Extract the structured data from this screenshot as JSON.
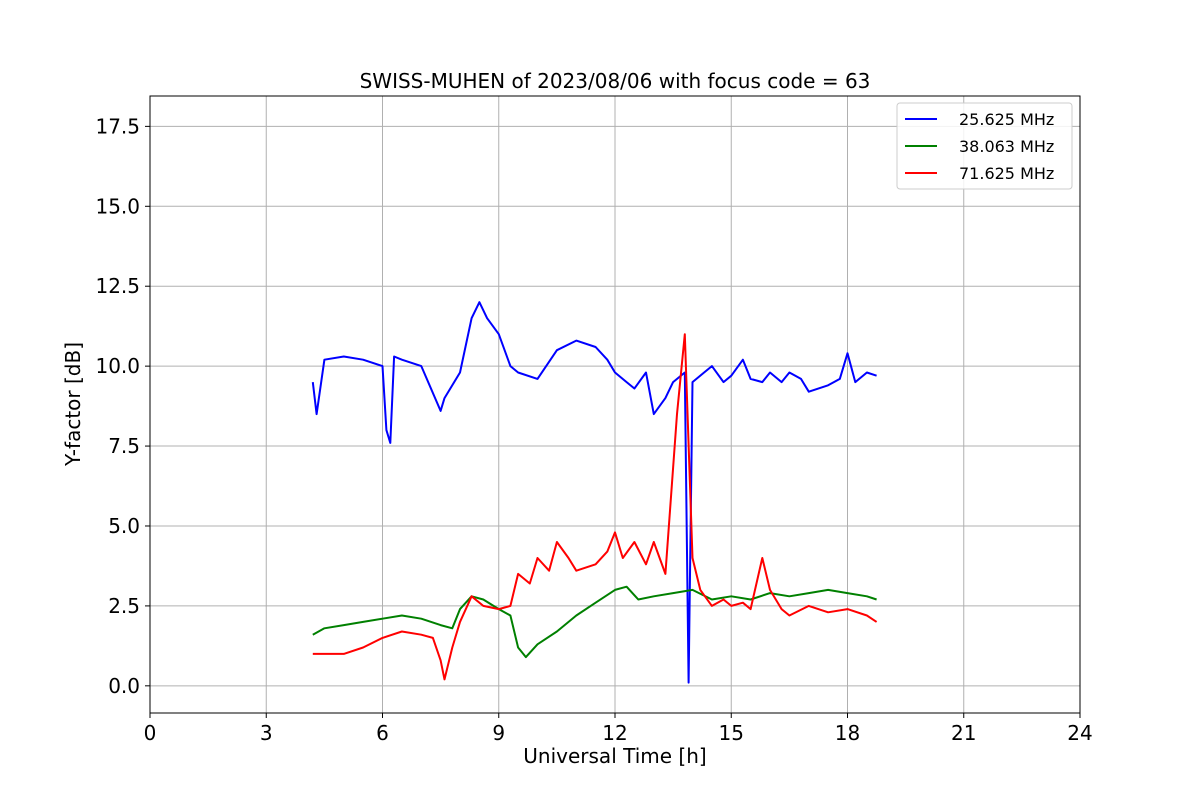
{
  "chart_data": {
    "type": "line",
    "title": "SWISS-MUHEN of 2023/08/06 with focus code = 63",
    "xlabel": "Universal Time [h]",
    "ylabel": "Y-factor [dB]",
    "xlim": [
      0,
      24
    ],
    "ylim": [
      -0.85,
      18.45
    ],
    "xticks": [
      0,
      3,
      6,
      9,
      12,
      15,
      18,
      21,
      24
    ],
    "xtick_labels": [
      "0",
      "3",
      "6",
      "9",
      "12",
      "15",
      "18",
      "21",
      "24"
    ],
    "yticks": [
      0.0,
      2.5,
      5.0,
      7.5,
      10.0,
      12.5,
      15.0,
      17.5
    ],
    "ytick_labels": [
      "0.0",
      "2.5",
      "5.0",
      "7.5",
      "10.0",
      "12.5",
      "15.0",
      "17.5"
    ],
    "grid": true,
    "legend_position": "top-right",
    "series": [
      {
        "name": "25.625 MHz",
        "color": "#0000ff",
        "x": [
          4.2,
          4.3,
          4.5,
          5.0,
          5.5,
          6.0,
          6.1,
          6.2,
          6.3,
          6.5,
          7.0,
          7.5,
          7.6,
          8.0,
          8.3,
          8.5,
          8.7,
          9.0,
          9.3,
          9.5,
          10.0,
          10.5,
          11.0,
          11.5,
          11.8,
          12.0,
          12.3,
          12.5,
          12.8,
          13.0,
          13.3,
          13.5,
          13.8,
          13.9,
          14.0,
          14.3,
          14.5,
          14.8,
          15.0,
          15.3,
          15.5,
          15.8,
          16.0,
          16.3,
          16.5,
          16.8,
          17.0,
          17.5,
          17.8,
          18.0,
          18.2,
          18.5,
          18.75
        ],
        "y": [
          9.5,
          8.5,
          10.2,
          10.3,
          10.2,
          10.0,
          8.0,
          7.6,
          10.3,
          10.2,
          10.0,
          8.6,
          9.0,
          9.8,
          11.5,
          12.0,
          11.5,
          11.0,
          10.0,
          9.8,
          9.6,
          10.5,
          10.8,
          10.6,
          10.2,
          9.8,
          9.5,
          9.3,
          9.8,
          8.5,
          9.0,
          9.5,
          9.8,
          0.1,
          9.5,
          9.8,
          10.0,
          9.5,
          9.7,
          10.2,
          9.6,
          9.5,
          9.8,
          9.5,
          9.8,
          9.6,
          9.2,
          9.4,
          9.6,
          10.4,
          9.5,
          9.8,
          9.7
        ]
      },
      {
        "name": "38.063 MHz",
        "color": "#008000",
        "x": [
          4.2,
          4.5,
          5.0,
          5.5,
          6.0,
          6.5,
          7.0,
          7.5,
          7.8,
          8.0,
          8.3,
          8.6,
          9.0,
          9.3,
          9.5,
          9.7,
          10.0,
          10.5,
          11.0,
          11.5,
          12.0,
          12.3,
          12.6,
          13.0,
          13.5,
          14.0,
          14.5,
          15.0,
          15.5,
          16.0,
          16.5,
          17.0,
          17.5,
          18.0,
          18.5,
          18.75
        ],
        "y": [
          1.6,
          1.8,
          1.9,
          2.0,
          2.1,
          2.2,
          2.1,
          1.9,
          1.8,
          2.4,
          2.8,
          2.7,
          2.4,
          2.2,
          1.2,
          0.9,
          1.3,
          1.7,
          2.2,
          2.6,
          3.0,
          3.1,
          2.7,
          2.8,
          2.9,
          3.0,
          2.7,
          2.8,
          2.7,
          2.9,
          2.8,
          2.9,
          3.0,
          2.9,
          2.8,
          2.7
        ]
      },
      {
        "name": "71.625 MHz",
        "color": "#ff0000",
        "x": [
          4.2,
          4.5,
          5.0,
          5.5,
          6.0,
          6.5,
          7.0,
          7.3,
          7.5,
          7.6,
          7.8,
          8.0,
          8.3,
          8.6,
          9.0,
          9.3,
          9.5,
          9.8,
          10.0,
          10.3,
          10.5,
          10.8,
          11.0,
          11.5,
          11.8,
          12.0,
          12.2,
          12.5,
          12.8,
          13.0,
          13.3,
          13.6,
          13.8,
          14.0,
          14.2,
          14.5,
          14.8,
          15.0,
          15.3,
          15.5,
          15.8,
          16.0,
          16.3,
          16.5,
          17.0,
          17.5,
          18.0,
          18.5,
          18.75
        ],
        "y": [
          1.0,
          1.0,
          1.0,
          1.2,
          1.5,
          1.7,
          1.6,
          1.5,
          0.8,
          0.2,
          1.2,
          2.0,
          2.8,
          2.5,
          2.4,
          2.5,
          3.5,
          3.2,
          4.0,
          3.6,
          4.5,
          4.0,
          3.6,
          3.8,
          4.2,
          4.8,
          4.0,
          4.5,
          3.8,
          4.5,
          3.5,
          8.5,
          11.0,
          4.0,
          3.0,
          2.5,
          2.7,
          2.5,
          2.6,
          2.4,
          4.0,
          3.0,
          2.4,
          2.2,
          2.5,
          2.3,
          2.4,
          2.2,
          2.0
        ]
      }
    ]
  }
}
